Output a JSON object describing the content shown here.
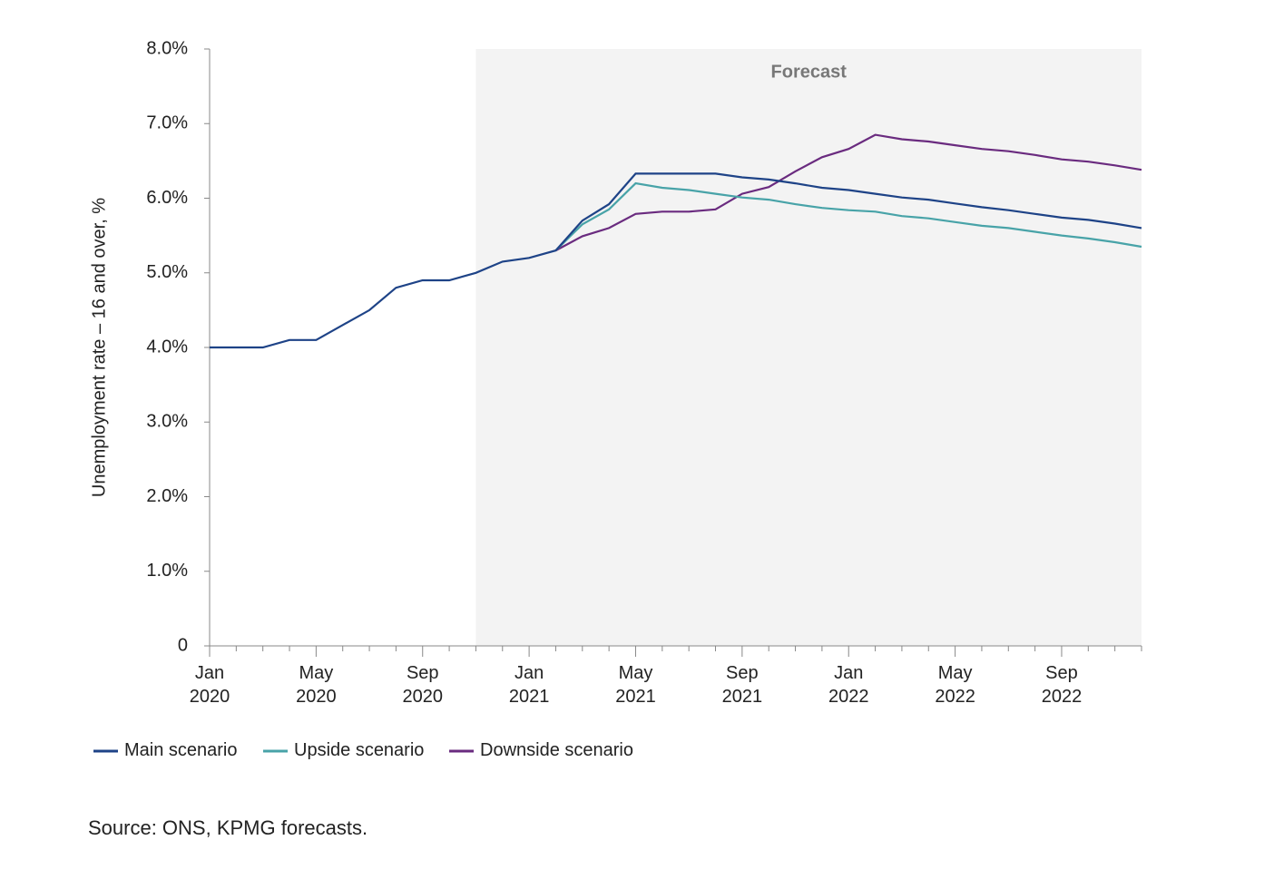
{
  "chart_data": {
    "type": "line",
    "forecast_label": "Forecast",
    "ylabel": "Unemployment rate – 16 and over, %",
    "source": "Source: ONS, KPMG forecasts.",
    "x": [
      "Jan 2020",
      null,
      null,
      null,
      "May 2020",
      null,
      null,
      null,
      "Sep 2020",
      null,
      null,
      null,
      "Jan 2021",
      null,
      null,
      null,
      "May 2021",
      null,
      null,
      null,
      "Sep 2021",
      null,
      null,
      null,
      "Jan 2022",
      null,
      null,
      null,
      "May 2022",
      null,
      null,
      null,
      "Sep 2022",
      null,
      null,
      null
    ],
    "series": [
      {
        "name": "Main scenario",
        "color": "#1e4387",
        "values": [
          4.0,
          4.0,
          4.0,
          4.1,
          4.1,
          4.3,
          4.5,
          4.8,
          4.9,
          4.9,
          5.0,
          5.15,
          5.2,
          5.3,
          5.7,
          5.92,
          6.33,
          6.33,
          6.33,
          6.33,
          6.28,
          6.25,
          6.2,
          6.14,
          6.11,
          6.06,
          6.01,
          5.98,
          5.93,
          5.88,
          5.84,
          5.79,
          5.74,
          5.71,
          5.66,
          5.6
        ]
      },
      {
        "name": "Upside scenario",
        "color": "#48a3a8",
        "values": [
          null,
          null,
          null,
          null,
          null,
          null,
          null,
          null,
          null,
          null,
          null,
          null,
          null,
          5.3,
          5.65,
          5.85,
          6.2,
          6.14,
          6.11,
          6.06,
          6.01,
          5.98,
          5.92,
          5.87,
          5.84,
          5.82,
          5.76,
          5.73,
          5.68,
          5.63,
          5.6,
          5.55,
          5.5,
          5.46,
          5.41,
          5.35
        ]
      },
      {
        "name": "Downside scenario",
        "color": "#6a2b7f",
        "values": [
          null,
          null,
          null,
          null,
          null,
          null,
          null,
          null,
          null,
          null,
          null,
          null,
          null,
          5.3,
          5.49,
          5.6,
          5.79,
          5.82,
          5.82,
          5.85,
          6.06,
          6.15,
          6.36,
          6.55,
          6.66,
          6.85,
          6.79,
          6.76,
          6.71,
          6.66,
          6.63,
          6.58,
          6.52,
          6.49,
          6.44,
          6.38
        ]
      }
    ],
    "ylim": [
      0,
      8
    ],
    "yticks": [
      0,
      {
        "value": 1,
        "label": "1.0%"
      },
      {
        "value": 2,
        "label": "2.0%"
      },
      {
        "value": 3,
        "label": "3.0%"
      },
      {
        "value": 4,
        "label": "4.0%"
      },
      {
        "value": 5,
        "label": "5.0%"
      },
      {
        "value": 6,
        "label": "6.0%"
      },
      {
        "value": 7,
        "label": "7.0%"
      },
      {
        "value": 8,
        "label": "8.0%"
      }
    ],
    "legend": "bottom-left"
  }
}
